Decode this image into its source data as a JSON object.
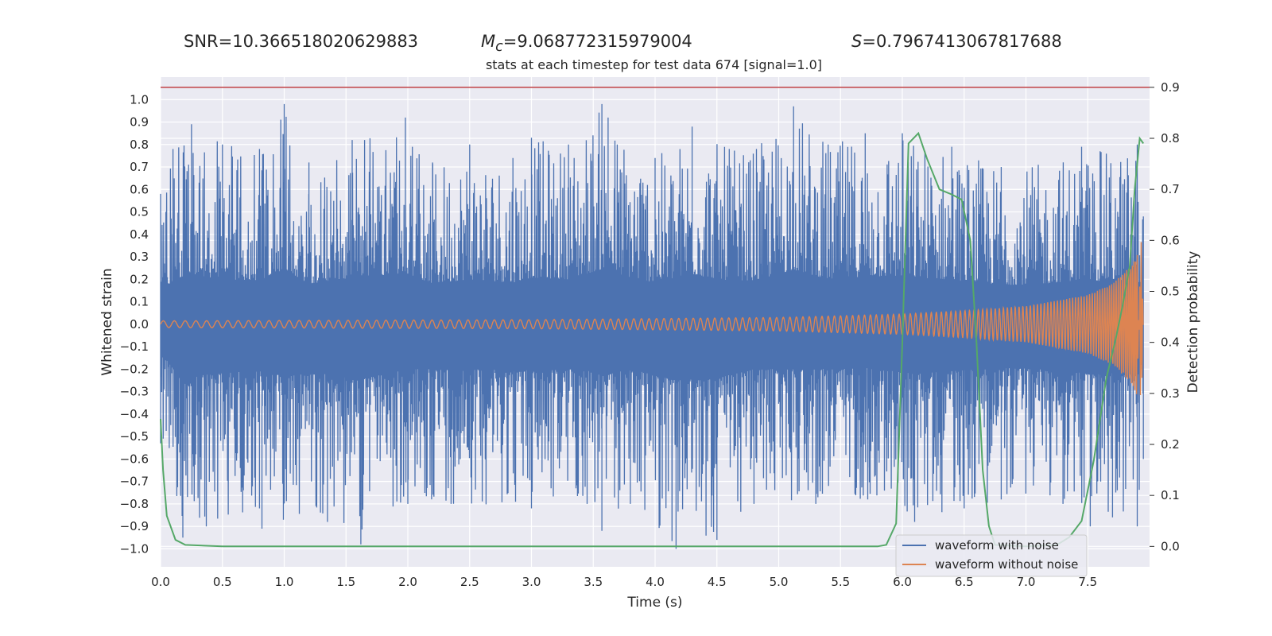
{
  "header": {
    "snr_text": "SNR=10.366518020629883",
    "mc_symbol": "M",
    "mc_sub": "c",
    "mc_value": "=9.068772315979004",
    "s_symbol": "S",
    "s_value": "=0.7967413067817688"
  },
  "chart_data": {
    "type": "line",
    "title": "stats at each timestep for test data 674 [signal=1.0]",
    "xlabel": "Time (s)",
    "ylabel": "Whitened strain",
    "y2label": "Detection probability",
    "xlim": [
      0.0,
      8.0
    ],
    "ylim": [
      -1.08,
      1.1
    ],
    "y2lim": [
      -0.04,
      0.92
    ],
    "x_ticks": [
      "0.0",
      "0.5",
      "1.0",
      "1.5",
      "2.0",
      "2.5",
      "3.0",
      "3.5",
      "4.0",
      "4.5",
      "5.0",
      "5.5",
      "6.0",
      "6.5",
      "7.0",
      "7.5"
    ],
    "y_ticks": [
      "1.0",
      "0.9",
      "0.8",
      "0.7",
      "0.6",
      "0.5",
      "0.4",
      "0.3",
      "0.2",
      "0.1",
      "0.0",
      "−0.1",
      "−0.2",
      "−0.3",
      "−0.4",
      "−0.5",
      "−0.6",
      "−0.7",
      "−0.8",
      "−0.9",
      "−1.0"
    ],
    "y2_ticks": [
      "0.9",
      "0.8",
      "0.7",
      "0.6",
      "0.5",
      "0.4",
      "0.3",
      "0.2",
      "0.1",
      "0.0"
    ],
    "grid": true,
    "legend_position": "bottom-right",
    "threshold": 0.9,
    "series": [
      {
        "name": "waveform with noise",
        "color": "#4c72b0",
        "axis": "left",
        "upper_envelope": [
          [
            0.0,
            0.58
          ],
          [
            0.1,
            0.78
          ],
          [
            0.25,
            0.89
          ],
          [
            0.5,
            0.8
          ],
          [
            0.8,
            0.78
          ],
          [
            1.0,
            0.98
          ],
          [
            1.2,
            0.72
          ],
          [
            1.55,
            0.82
          ],
          [
            1.65,
            0.82
          ],
          [
            1.98,
            0.92
          ],
          [
            2.2,
            0.72
          ],
          [
            2.5,
            0.8
          ],
          [
            2.85,
            0.74
          ],
          [
            3.0,
            0.83
          ],
          [
            3.3,
            0.8
          ],
          [
            3.57,
            0.98
          ],
          [
            3.62,
            0.92
          ],
          [
            4.0,
            0.74
          ],
          [
            4.3,
            0.88
          ],
          [
            4.6,
            0.78
          ],
          [
            4.82,
            0.78
          ],
          [
            5.12,
            0.97
          ],
          [
            5.4,
            0.8
          ],
          [
            5.7,
            0.85
          ],
          [
            6.0,
            0.85
          ],
          [
            6.4,
            0.79
          ],
          [
            6.8,
            0.7
          ],
          [
            7.1,
            0.71
          ],
          [
            7.45,
            0.79
          ],
          [
            7.6,
            0.77
          ],
          [
            7.9,
            0.8
          ],
          [
            7.95,
            0.48
          ]
        ],
        "lower_envelope": [
          [
            0.0,
            -0.53
          ],
          [
            0.18,
            -0.95
          ],
          [
            0.37,
            -0.9
          ],
          [
            0.8,
            -0.82
          ],
          [
            0.82,
            -0.91
          ],
          [
            1.35,
            -0.88
          ],
          [
            1.62,
            -0.98
          ],
          [
            2.0,
            -0.8
          ],
          [
            2.35,
            -0.8
          ],
          [
            3.0,
            -0.82
          ],
          [
            3.45,
            -0.8
          ],
          [
            3.57,
            -0.92
          ],
          [
            3.8,
            -0.8
          ],
          [
            4.17,
            -1.0
          ],
          [
            4.5,
            -0.96
          ],
          [
            4.8,
            -0.8
          ],
          [
            5.3,
            -0.8
          ],
          [
            5.72,
            -0.78
          ],
          [
            6.1,
            -0.88
          ],
          [
            6.5,
            -0.82
          ],
          [
            6.8,
            -0.78
          ],
          [
            7.3,
            -0.8
          ],
          [
            7.52,
            -0.9
          ],
          [
            7.7,
            -0.86
          ],
          [
            7.9,
            -0.9
          ],
          [
            7.95,
            -0.6
          ]
        ]
      },
      {
        "name": "waveform without noise",
        "color": "#dd8452",
        "axis": "left",
        "amplitude": [
          [
            0.0,
            0.015
          ],
          [
            3.0,
            0.02
          ],
          [
            5.0,
            0.03
          ],
          [
            6.0,
            0.045
          ],
          [
            6.5,
            0.06
          ],
          [
            7.0,
            0.08
          ],
          [
            7.5,
            0.13
          ],
          [
            7.7,
            0.18
          ],
          [
            7.85,
            0.26
          ],
          [
            7.9,
            0.32
          ],
          [
            7.93,
            -0.41
          ],
          [
            7.95,
            0.0
          ]
        ],
        "frequency": [
          [
            0.0,
            11.2
          ],
          [
            3.0,
            14.5
          ],
          [
            5.0,
            18.5
          ],
          [
            6.0,
            22.0
          ],
          [
            6.5,
            27.0
          ],
          [
            7.0,
            33.0
          ],
          [
            7.5,
            45.0
          ],
          [
            7.8,
            60.0
          ],
          [
            7.92,
            80.0
          ]
        ]
      },
      {
        "name": "detection probability",
        "color": "#55a868",
        "axis": "right",
        "points": [
          [
            0.0,
            0.25
          ],
          [
            0.02,
            0.15
          ],
          [
            0.05,
            0.06
          ],
          [
            0.12,
            0.013
          ],
          [
            0.2,
            0.003
          ],
          [
            0.5,
            0.0
          ],
          [
            1.0,
            0.0
          ],
          [
            2.0,
            0.0
          ],
          [
            3.0,
            0.0
          ],
          [
            4.0,
            0.0
          ],
          [
            5.0,
            0.0
          ],
          [
            5.8,
            0.0
          ],
          [
            5.87,
            0.003
          ],
          [
            5.95,
            0.045
          ],
          [
            6.0,
            0.4
          ],
          [
            6.05,
            0.79
          ],
          [
            6.13,
            0.81
          ],
          [
            6.2,
            0.76
          ],
          [
            6.3,
            0.7
          ],
          [
            6.4,
            0.69
          ],
          [
            6.48,
            0.68
          ],
          [
            6.55,
            0.6
          ],
          [
            6.6,
            0.4
          ],
          [
            6.65,
            0.15
          ],
          [
            6.7,
            0.04
          ],
          [
            6.75,
            0.003
          ],
          [
            7.0,
            0.0
          ],
          [
            7.25,
            0.003
          ],
          [
            7.35,
            0.018
          ],
          [
            7.45,
            0.05
          ],
          [
            7.55,
            0.17
          ],
          [
            7.65,
            0.33
          ],
          [
            7.72,
            0.4
          ],
          [
            7.78,
            0.47
          ],
          [
            7.84,
            0.55
          ],
          [
            7.88,
            0.7
          ],
          [
            7.92,
            0.8
          ],
          [
            7.95,
            0.79
          ]
        ]
      }
    ]
  }
}
